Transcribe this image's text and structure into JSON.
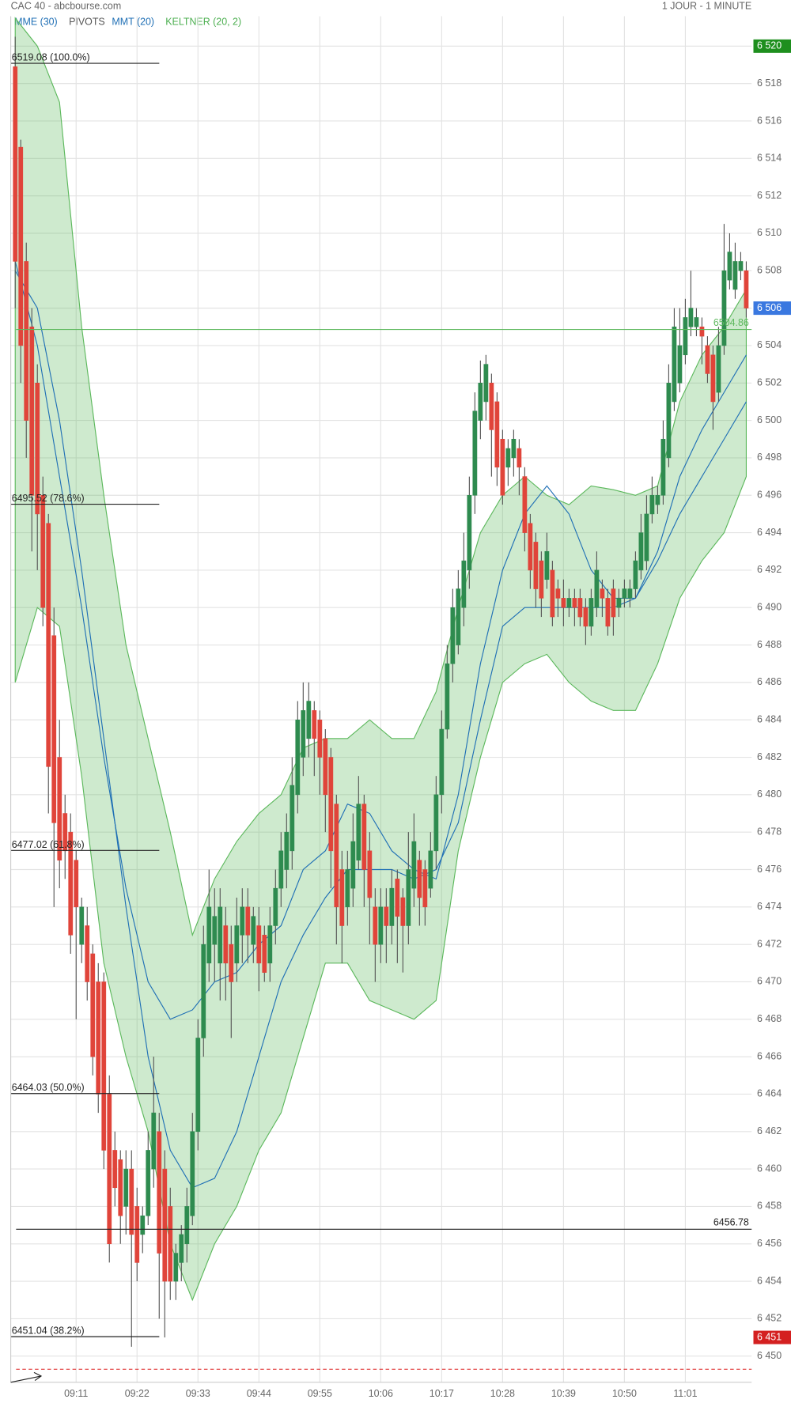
{
  "chart_data": {
    "type": "candlestick",
    "title": "CAC 40 - abcbourse.com",
    "subtitle": "1 JOUR - 1 MINUTE",
    "legend": [
      "MME (30)",
      "PIVOTS",
      "MMT (20)",
      "KELTNER (20, 2)"
    ],
    "up_color": "#2e8b4f",
    "down_color": "#e0443a",
    "grid": true,
    "ylim": [
      6448.6,
      6521.6
    ],
    "yticks": [
      {
        "value": 6450,
        "label": "6 450"
      },
      {
        "value": 6452,
        "label": "6 452"
      },
      {
        "value": 6454,
        "label": "6 454"
      },
      {
        "value": 6456,
        "label": "6 456"
      },
      {
        "value": 6458,
        "label": "6 458"
      },
      {
        "value": 6460,
        "label": "6 460"
      },
      {
        "value": 6462,
        "label": "6 462"
      },
      {
        "value": 6464,
        "label": "6 464"
      },
      {
        "value": 6466,
        "label": "6 466"
      },
      {
        "value": 6468,
        "label": "6 468"
      },
      {
        "value": 6470,
        "label": "6 470"
      },
      {
        "value": 6472,
        "label": "6 472"
      },
      {
        "value": 6474,
        "label": "6 474"
      },
      {
        "value": 6476,
        "label": "6 476"
      },
      {
        "value": 6478,
        "label": "6 478"
      },
      {
        "value": 6480,
        "label": "6 480"
      },
      {
        "value": 6482,
        "label": "6 482"
      },
      {
        "value": 6484,
        "label": "6 484"
      },
      {
        "value": 6486,
        "label": "6 486"
      },
      {
        "value": 6488,
        "label": "6 488"
      },
      {
        "value": 6490,
        "label": "6 490"
      },
      {
        "value": 6492,
        "label": "6 492"
      },
      {
        "value": 6494,
        "label": "6 494"
      },
      {
        "value": 6496,
        "label": "6 496"
      },
      {
        "value": 6498,
        "label": "6 498"
      },
      {
        "value": 6500,
        "label": "6 500"
      },
      {
        "value": 6502,
        "label": "6 502"
      },
      {
        "value": 6504,
        "label": "6 504"
      },
      {
        "value": 6506,
        "label": "6 506"
      },
      {
        "value": 6508,
        "label": "6 508"
      },
      {
        "value": 6510,
        "label": "6 510"
      },
      {
        "value": 6512,
        "label": "6 512"
      },
      {
        "value": 6514,
        "label": "6 514"
      },
      {
        "value": 6516,
        "label": "6 516"
      },
      {
        "value": 6518,
        "label": "6 518"
      },
      {
        "value": 6520,
        "label": "6 520"
      }
    ],
    "categories": [
      null,
      null,
      null,
      null,
      null,
      null,
      null,
      null,
      null,
      null,
      null,
      "09:11",
      null,
      null,
      null,
      null,
      null,
      null,
      null,
      null,
      null,
      null,
      "09:22",
      null,
      null,
      null,
      null,
      null,
      null,
      null,
      null,
      null,
      null,
      "09:33",
      null,
      null,
      null,
      null,
      null,
      null,
      null,
      null,
      null,
      null,
      "09:44",
      null,
      null,
      null,
      null,
      null,
      null,
      null,
      null,
      null,
      null,
      "09:55",
      null,
      null,
      null,
      null,
      null,
      null,
      null,
      null,
      null,
      null,
      "10:06",
      null,
      null,
      null,
      null,
      null,
      null,
      null,
      null,
      null,
      null,
      "10:17",
      null,
      null,
      null,
      null,
      null,
      null,
      null,
      null,
      null,
      null,
      "10:28",
      null,
      null,
      null,
      null,
      null,
      null,
      null,
      null,
      null,
      null,
      "10:39",
      null,
      null,
      null,
      null,
      null,
      null,
      null,
      null,
      null,
      null,
      "10:50",
      null,
      null,
      null,
      null,
      null,
      null,
      null,
      null,
      null,
      null,
      "11:01",
      null,
      null,
      null,
      null,
      null,
      null,
      null,
      null,
      null,
      null,
      null
    ],
    "candles": [
      [
        6518.9,
        6520.5,
        6506,
        6508.5
      ],
      [
        6514.6,
        6515,
        6502,
        6504
      ],
      [
        6508.5,
        6509.5,
        6498,
        6500
      ],
      [
        6505,
        6506,
        6493,
        6496
      ],
      [
        6502,
        6503,
        6492,
        6495
      ],
      [
        6496,
        6497,
        6489,
        6490
      ],
      [
        6494.5,
        6495,
        6479,
        6481.5
      ],
      [
        6488.5,
        6490,
        6474,
        6478.5
      ],
      [
        6482,
        6484,
        6475,
        6476.5
      ],
      [
        6479,
        6480,
        6475.5,
        6477
      ],
      [
        6478,
        6479,
        6471.5,
        6472.5
      ],
      [
        6476.5,
        6477,
        6468,
        6474
      ],
      [
        6472,
        6474.5,
        6471,
        6474
      ],
      [
        6473,
        6474,
        6469,
        6470
      ],
      [
        6471.5,
        6472,
        6465,
        6466
      ],
      [
        6470,
        6471,
        6463,
        6464
      ],
      [
        6470,
        6470.5,
        6460,
        6461
      ],
      [
        6464,
        6465,
        6455,
        6456
      ],
      [
        6461,
        6462,
        6458,
        6459
      ],
      [
        6460.5,
        6461,
        6456,
        6457.5
      ],
      [
        6458,
        6461,
        6456.5,
        6460
      ],
      [
        6460,
        6461,
        6450.5,
        6456.5
      ],
      [
        6458,
        6459,
        6454,
        6455
      ],
      [
        6456.5,
        6458,
        6455.5,
        6457.5
      ],
      [
        6457.5,
        6462,
        6457,
        6461
      ],
      [
        6460,
        6466,
        6459,
        6463
      ],
      [
        6462,
        6463,
        6452,
        6455.5
      ],
      [
        6460,
        6461,
        6451,
        6454
      ],
      [
        6458,
        6459,
        6453,
        6454
      ],
      [
        6454,
        6456,
        6453,
        6455.5
      ],
      [
        6455,
        6457,
        6454,
        6456.5
      ],
      [
        6456,
        6459,
        6455,
        6458
      ],
      [
        6457.5,
        6463,
        6457,
        6462
      ],
      [
        6462,
        6468,
        6461,
        6467
      ],
      [
        6467,
        6473,
        6466,
        6472
      ],
      [
        6471,
        6476,
        6470,
        6474
      ],
      [
        6472,
        6475,
        6470,
        6473.5
      ],
      [
        6471,
        6475,
        6469,
        6474
      ],
      [
        6473,
        6474,
        6469,
        6471
      ],
      [
        6472,
        6473,
        6467,
        6470
      ],
      [
        6471,
        6474.5,
        6470,
        6473
      ],
      [
        6472.5,
        6475,
        6471,
        6474
      ],
      [
        6474,
        6475,
        6471,
        6472.5
      ],
      [
        6472,
        6474,
        6471,
        6473.5
      ],
      [
        6473,
        6474,
        6469.5,
        6471
      ],
      [
        6472.5,
        6473,
        6470,
        6470.5
      ],
      [
        6471,
        6474,
        6470,
        6473
      ],
      [
        6473,
        6476,
        6472,
        6475
      ],
      [
        6475,
        6478,
        6474,
        6477
      ],
      [
        6476,
        6479,
        6475,
        6478
      ],
      [
        6477,
        6482,
        6476,
        6480.5
      ],
      [
        6480,
        6485,
        6479,
        6484
      ],
      [
        6482,
        6486,
        6481,
        6484.5
      ],
      [
        6483,
        6486,
        6482,
        6485
      ],
      [
        6484.5,
        6485,
        6481,
        6483
      ],
      [
        6484,
        6484.5,
        6480,
        6482
      ],
      [
        6483,
        6483.5,
        6478,
        6480
      ],
      [
        6482,
        6482.5,
        6475,
        6477
      ],
      [
        6479.5,
        6480,
        6472,
        6474
      ],
      [
        6476,
        6477,
        6471,
        6473
      ],
      [
        6474,
        6477,
        6473,
        6476
      ],
      [
        6475,
        6479,
        6474,
        6477.5
      ],
      [
        6476.5,
        6481,
        6476,
        6479.5
      ],
      [
        6479.5,
        6480,
        6474,
        6476
      ],
      [
        6477,
        6478,
        6472,
        6474.5
      ],
      [
        6474,
        6475,
        6470,
        6472
      ],
      [
        6472,
        6475,
        6471,
        6474
      ],
      [
        6474,
        6475,
        6471,
        6473
      ],
      [
        6473,
        6476,
        6472,
        6475
      ],
      [
        6475.5,
        6476,
        6471,
        6473.5
      ],
      [
        6474.5,
        6475,
        6470.5,
        6473
      ],
      [
        6473,
        6478,
        6472,
        6476
      ],
      [
        6475,
        6479,
        6474,
        6477.5
      ],
      [
        6476.5,
        6477,
        6473,
        6474.5
      ],
      [
        6476,
        6476.5,
        6473,
        6474
      ],
      [
        6475,
        6478,
        6474.5,
        6477
      ],
      [
        6477,
        6481,
        6476,
        6480
      ],
      [
        6480,
        6484.5,
        6479,
        6483.5
      ],
      [
        6483.5,
        6488,
        6483,
        6487
      ],
      [
        6487,
        6491,
        6486,
        6490
      ],
      [
        6488,
        6492,
        6487.5,
        6491
      ],
      [
        6490,
        6494,
        6489,
        6492.5
      ],
      [
        6492,
        6497,
        6491,
        6496
      ],
      [
        6496,
        6501.5,
        6495,
        6500.5
      ],
      [
        6500,
        6503.2,
        6499,
        6502
      ],
      [
        6501,
        6503.5,
        6500,
        6503
      ],
      [
        6502,
        6502.5,
        6497,
        6499.5
      ],
      [
        6501,
        6501.5,
        6496.5,
        6497.5
      ],
      [
        6499,
        6499.5,
        6495.5,
        6496
      ],
      [
        6497.5,
        6499,
        6496.5,
        6498.5
      ],
      [
        6498,
        6499.5,
        6497,
        6499
      ],
      [
        6498.5,
        6499,
        6496,
        6497.5
      ],
      [
        6497,
        6497.5,
        6493,
        6494
      ],
      [
        6494.5,
        6495,
        6491,
        6492
      ],
      [
        6493.5,
        6494,
        6490,
        6491
      ],
      [
        6492.5,
        6493,
        6489.5,
        6490.5
      ],
      [
        6491.5,
        6494,
        6491,
        6493
      ],
      [
        6492,
        6492.5,
        6489,
        6489.5
      ],
      [
        6491,
        6491.5,
        6489.5,
        6490.5
      ],
      [
        6490.5,
        6491.5,
        6489,
        6490
      ],
      [
        6490,
        6491,
        6489.5,
        6490.5
      ],
      [
        6490.5,
        6491,
        6489,
        6490
      ],
      [
        6490.5,
        6491,
        6489,
        6489.5
      ],
      [
        6490,
        6490.5,
        6488,
        6489
      ],
      [
        6489,
        6491,
        6488.5,
        6490.5
      ],
      [
        6490,
        6493,
        6489.5,
        6492
      ],
      [
        6491,
        6491.5,
        6489.5,
        6490.5
      ],
      [
        6490.5,
        6491,
        6488.5,
        6489
      ],
      [
        6491,
        6491.5,
        6488.5,
        6489.5
      ],
      [
        6490,
        6491,
        6489.5,
        6490.5
      ],
      [
        6490.5,
        6491.5,
        6490,
        6491
      ],
      [
        6490.5,
        6491.5,
        6490,
        6491
      ],
      [
        6491,
        6493,
        6490.5,
        6492.5
      ],
      [
        6492,
        6495,
        6491.5,
        6494
      ],
      [
        6492.5,
        6496,
        6492,
        6495
      ],
      [
        6495,
        6497,
        6494.5,
        6496
      ],
      [
        6495.5,
        6496.5,
        6495,
        6496
      ],
      [
        6496,
        6500,
        6495.5,
        6499
      ],
      [
        6498,
        6503,
        6497.5,
        6502
      ],
      [
        6501,
        6506,
        6500.5,
        6505
      ],
      [
        6502,
        6506,
        6501.5,
        6504
      ],
      [
        6503.5,
        6506.5,
        6503,
        6505.5
      ],
      [
        6505,
        6508,
        6504.5,
        6506
      ],
      [
        6505,
        6506,
        6504.5,
        6505.5
      ],
      [
        6505,
        6505.5,
        6503,
        6504.5
      ],
      [
        6504,
        6504.5,
        6502,
        6502.5
      ],
      [
        6503.5,
        6504,
        6499.5,
        6501
      ],
      [
        6501.5,
        6505,
        6501,
        6504
      ],
      [
        6504,
        6510.5,
        6503.5,
        6508
      ],
      [
        6507.5,
        6510,
        6507,
        6509
      ],
      [
        6507,
        6509.5,
        6506.5,
        6508.5
      ],
      [
        6508,
        6509,
        6507.5,
        6508.5
      ],
      [
        6508,
        6508.5,
        6505.5,
        6506
      ]
    ],
    "band": {
      "color": "#5cb85c",
      "x": [
        0,
        4,
        8,
        12,
        16,
        20,
        24,
        28,
        32,
        36,
        40,
        44,
        48,
        52,
        56,
        60,
        64,
        68,
        72,
        76,
        80,
        84,
        88,
        92,
        96,
        100,
        104,
        108,
        112,
        116,
        120,
        124,
        128,
        132
      ],
      "upper": [
        6521.5,
        6520,
        6517,
        6505,
        6496,
        6488,
        6483,
        6478,
        6472.5,
        6475.5,
        6477.5,
        6479,
        6480,
        6482.5,
        6483,
        6483,
        6484,
        6483,
        6483,
        6485.5,
        6490,
        6494,
        6496,
        6497,
        6496,
        6495.5,
        6496.5,
        6496.3,
        6496,
        6496.5,
        6501,
        6503.5,
        6505,
        6507
      ],
      "lower": [
        6486,
        6490,
        6489,
        6481,
        6471,
        6466,
        6462,
        6456,
        6453,
        6456,
        6458,
        6461,
        6463,
        6467,
        6471,
        6471,
        6469,
        6468.5,
        6468,
        6469,
        6477,
        6482,
        6486,
        6487,
        6487.5,
        6486,
        6485,
        6484.5,
        6484.5,
        6487,
        6490.5,
        6492.5,
        6494,
        6497
      ]
    },
    "series": [
      {
        "name": "MME (30)",
        "color": "#1f6fb5",
        "x": [
          0,
          4,
          8,
          12,
          16,
          20,
          24,
          28,
          32,
          36,
          40,
          44,
          48,
          52,
          56,
          60,
          64,
          68,
          72,
          76,
          80,
          84,
          88,
          92,
          96,
          100,
          104,
          108,
          112,
          116,
          120,
          124,
          128,
          132
        ],
        "values": [
          6508.5,
          6504,
          6497,
          6490,
          6482,
          6475,
          6470,
          6468,
          6468.5,
          6470,
          6470.5,
          6472,
          6473,
          6476,
          6477,
          6479.5,
          6479,
          6477,
          6476,
          6475.5,
          6480,
          6487,
          6492,
          6495,
          6496.5,
          6495,
          6492,
          6490.5,
          6490.5,
          6493,
          6497,
          6499.5,
          6501.5,
          6503.5
        ]
      },
      {
        "name": "MMT (20)",
        "color": "#1f6fb5",
        "x": [
          0,
          4,
          8,
          12,
          16,
          20,
          24,
          28,
          32,
          36,
          40,
          44,
          48,
          52,
          56,
          60,
          64,
          68,
          72,
          76,
          80,
          84,
          88,
          92,
          96,
          100,
          104,
          108,
          112,
          116,
          120,
          124,
          128,
          132
        ],
        "values": [
          6508,
          6506,
          6500,
          6492,
          6483,
          6474,
          6466,
          6461,
          6459,
          6459.5,
          6462,
          6466,
          6470,
          6472.5,
          6474.5,
          6476,
          6476,
          6476,
          6475.5,
          6476,
          6478.5,
          6484,
          6489,
          6490,
          6490,
          6490,
          6490,
          6490,
          6490.5,
          6492.5,
          6495,
          6497,
          6499,
          6501
        ]
      }
    ],
    "fibonacci": [
      {
        "value": 6519.08,
        "label": "6519.08  (100.0%)"
      },
      {
        "value": 6495.52,
        "label": "6495.52  (78.6%)"
      },
      {
        "value": 6477.02,
        "label": "6477.02  (61.8%)"
      },
      {
        "value": 6464.03,
        "label": "6464.03  (50.0%)"
      },
      {
        "value": 6451.04,
        "label": "6451.04  (38.2%)"
      }
    ],
    "pivots": [
      {
        "value": 6504.86,
        "label": "6504.86",
        "color": "#5cb85c"
      },
      {
        "value": 6456.78,
        "label": "6456.78",
        "color": "#222222"
      }
    ],
    "price_tags": [
      {
        "value": 6520,
        "label": "6 520",
        "color": "#1e8f1e"
      },
      {
        "value": 6506,
        "label": "6 506",
        "color": "#3a78e0"
      },
      {
        "value": 6451,
        "label": "6 451",
        "color": "#d42020"
      }
    ],
    "dashed_line": {
      "value": 6449.3,
      "color": "#e03030"
    }
  }
}
